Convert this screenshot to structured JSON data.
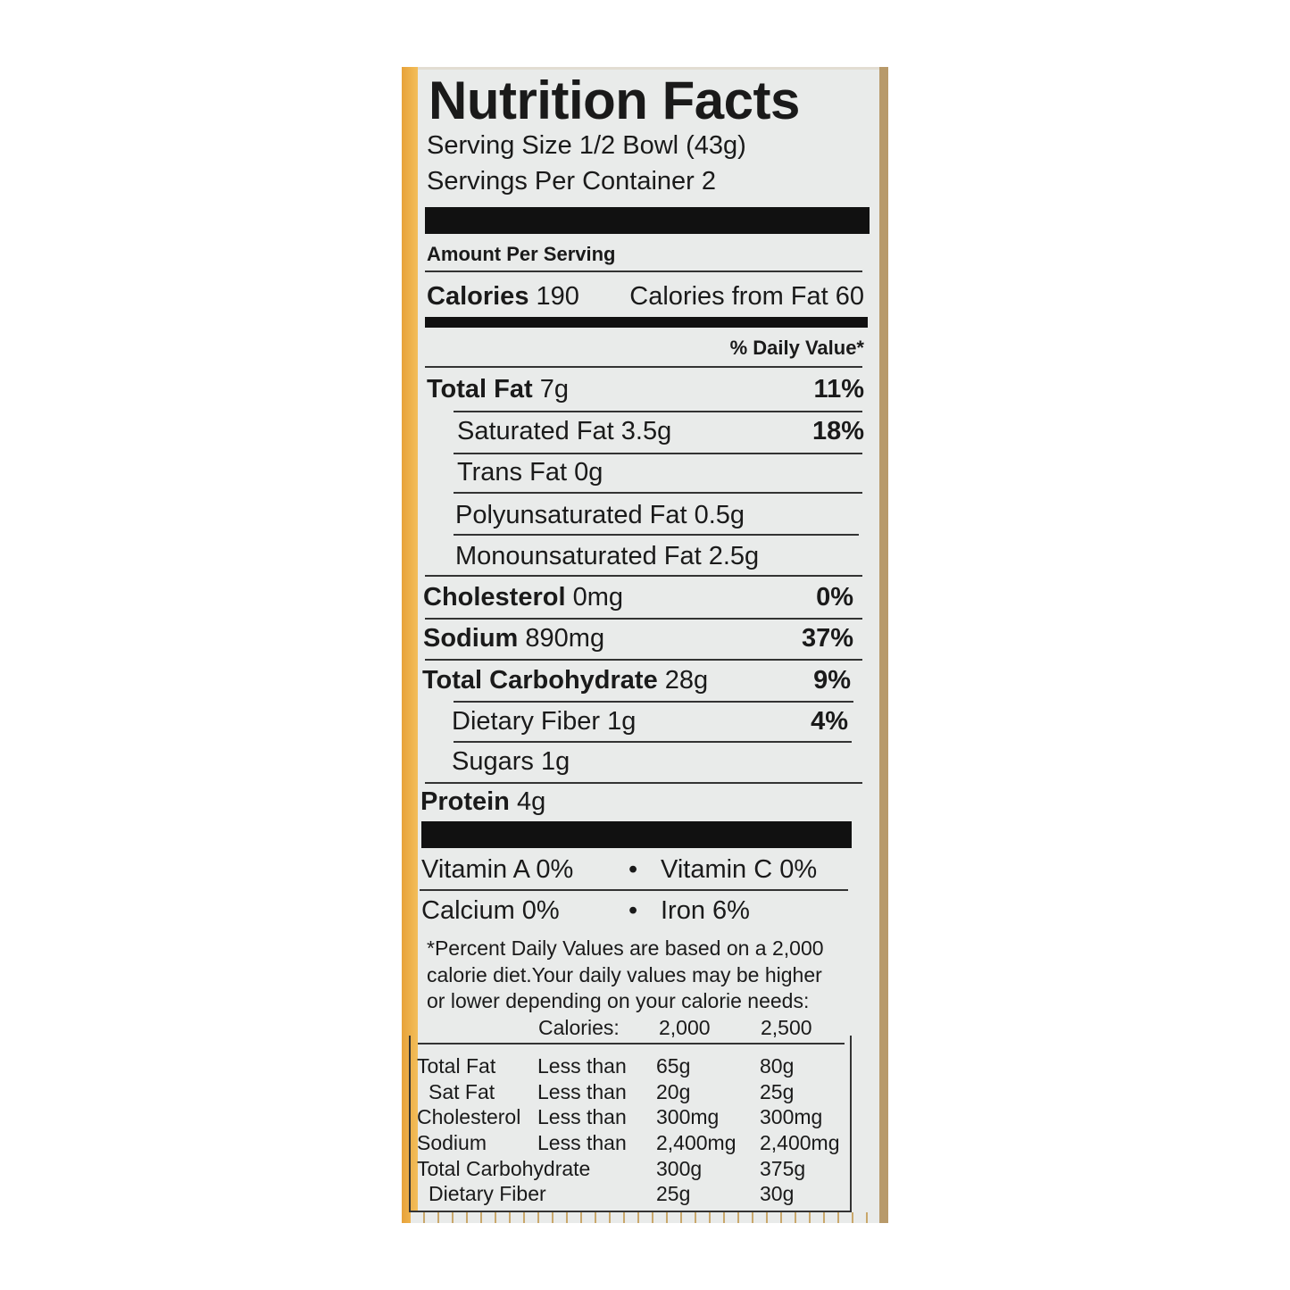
{
  "title": "Nutrition Facts",
  "serving_size": "Serving Size 1/2 Bowl (43g)",
  "servings_per_container": "Servings Per Container 2",
  "amount_per_serving": "Amount Per Serving",
  "calories": {
    "label": "Calories",
    "value": "190",
    "from_fat": "Calories from Fat 60"
  },
  "daily_value_header": "% Daily Value*",
  "nutrients": [
    {
      "label": "Total Fat",
      "amount": "7g",
      "dv": "11%"
    },
    {
      "label": "Saturated Fat",
      "amount": "3.5g",
      "dv": "18%"
    },
    {
      "label": "Trans Fat",
      "amount": "0g",
      "dv": ""
    },
    {
      "label": "Polyunsaturated Fat",
      "amount": "0.5g",
      "dv": ""
    },
    {
      "label": "Monounsaturated Fat",
      "amount": "2.5g",
      "dv": ""
    },
    {
      "label": "Cholesterol",
      "amount": "0mg",
      "dv": "0%"
    },
    {
      "label": "Sodium",
      "amount": "890mg",
      "dv": "37%"
    },
    {
      "label": "Total Carbohydrate",
      "amount": "28g",
      "dv": "9%"
    },
    {
      "label": "Dietary Fiber",
      "amount": "1g",
      "dv": "4%"
    },
    {
      "label": "Sugars",
      "amount": "1g",
      "dv": ""
    },
    {
      "label": "Protein",
      "amount": "4g",
      "dv": ""
    }
  ],
  "vitamins": [
    {
      "left": "Vitamin A 0%",
      "right": "Vitamin C 0%"
    },
    {
      "left": "Calcium 0%",
      "right": "Iron 6%"
    }
  ],
  "bullet": "•",
  "footnote": [
    "*Percent Daily Values are based on a 2,000",
    "calorie diet.Your daily values may be higher",
    "or lower depending on your calorie needs:"
  ],
  "dv_table": {
    "header": {
      "label": "Calories:",
      "c1": "2,000",
      "c2": "2,500"
    },
    "rows": [
      {
        "name": "Total Fat",
        "qual": "Less than",
        "c1": "65g",
        "c2": "80g"
      },
      {
        "name": "Sat Fat",
        "qual": "Less than",
        "c1": "20g",
        "c2": "25g"
      },
      {
        "name": "Cholesterol",
        "qual": "Less than",
        "c1": "300mg",
        "c2": "300mg"
      },
      {
        "name": "Sodium",
        "qual": "Less than",
        "c1": "2,400mg",
        "c2": "2,400mg"
      },
      {
        "name": "Total Carbohydrate",
        "qual": "",
        "c1": "300g",
        "c2": "375g"
      },
      {
        "name": "Dietary Fiber",
        "qual": "",
        "c1": "25g",
        "c2": "30g"
      }
    ]
  },
  "colors": {
    "panel": "#e9ebea",
    "accent_strip": "#f0b048",
    "ink": "#1a1a1a"
  }
}
